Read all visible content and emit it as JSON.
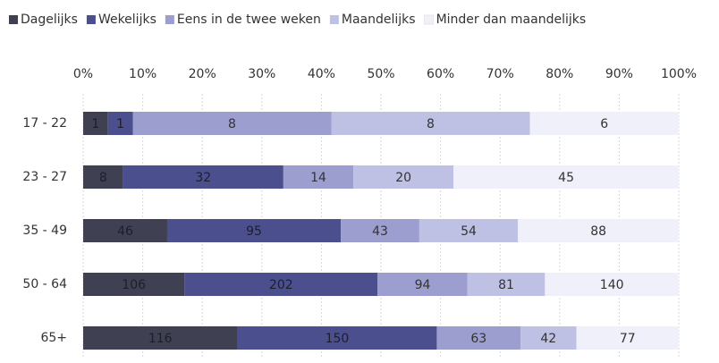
{
  "chart_data": {
    "type": "bar",
    "orientation": "horizontal",
    "stacked": "percent",
    "categories": [
      "17 - 22",
      "23 - 27",
      "35 - 49",
      "50 - 64",
      "65+"
    ],
    "series": [
      {
        "name": "Dagelijks",
        "color": "#3f4052",
        "values": [
          1,
          8,
          46,
          106,
          116
        ]
      },
      {
        "name": "Wekelijks",
        "color": "#4b4f8e",
        "values": [
          1,
          32,
          95,
          202,
          150
        ]
      },
      {
        "name": "Eens in de twee weken",
        "color": "#9c9ed0",
        "values": [
          8,
          14,
          43,
          94,
          63
        ]
      },
      {
        "name": "Maandelijks",
        "color": "#bfc1e4",
        "values": [
          8,
          20,
          54,
          81,
          42
        ]
      },
      {
        "name": "Minder dan maandelijks",
        "color": "#eff0f9",
        "values": [
          6,
          45,
          88,
          140,
          77
        ]
      }
    ],
    "xlim": [
      0,
      100
    ],
    "xticks": [
      {
        "value": 0,
        "label": "0%"
      },
      {
        "value": 10,
        "label": "10%"
      },
      {
        "value": 20,
        "label": "20%"
      },
      {
        "value": 30,
        "label": "30%"
      },
      {
        "value": 40,
        "label": "40%"
      },
      {
        "value": 50,
        "label": "50%"
      },
      {
        "value": 60,
        "label": "60%"
      },
      {
        "value": 70,
        "label": "70%"
      },
      {
        "value": 80,
        "label": "80%"
      },
      {
        "value": 90,
        "label": "90%"
      },
      {
        "value": 100,
        "label": "100%"
      }
    ],
    "grid": true,
    "legend": "top"
  }
}
